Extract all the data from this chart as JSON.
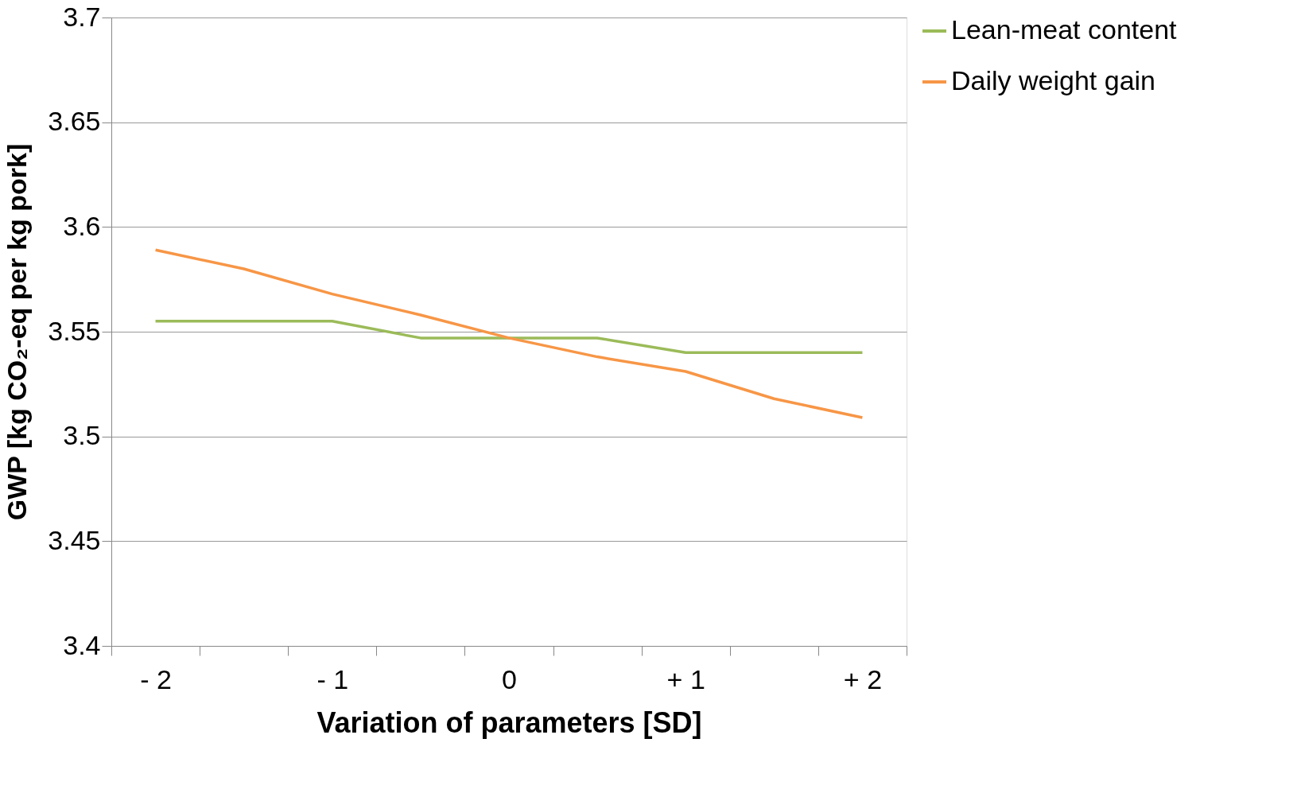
{
  "chart_data": {
    "type": "line",
    "xlabel": "Variation of parameters [SD]",
    "ylabel": "GWP [kg CO₂-eq per kg pork]",
    "categories": [
      "- 2",
      null,
      "- 1",
      null,
      "0",
      null,
      "+ 1",
      null,
      "+ 2"
    ],
    "series": [
      {
        "name": "Lean-meat content",
        "color": "#9bbb59",
        "values": [
          3.555,
          3.555,
          3.555,
          3.547,
          3.547,
          3.547,
          3.54,
          3.54,
          3.54
        ]
      },
      {
        "name": "Daily weight gain",
        "color": "#f79646",
        "values": [
          3.589,
          3.58,
          3.568,
          3.558,
          3.547,
          3.538,
          3.531,
          3.518,
          3.509
        ]
      }
    ],
    "ylim": [
      3.4,
      3.7
    ],
    "yticks": [
      3.4,
      3.45,
      3.5,
      3.55,
      3.6,
      3.65,
      3.7
    ],
    "grid": "y",
    "legend": "right",
    "marker": "none",
    "line_style": "solid"
  }
}
